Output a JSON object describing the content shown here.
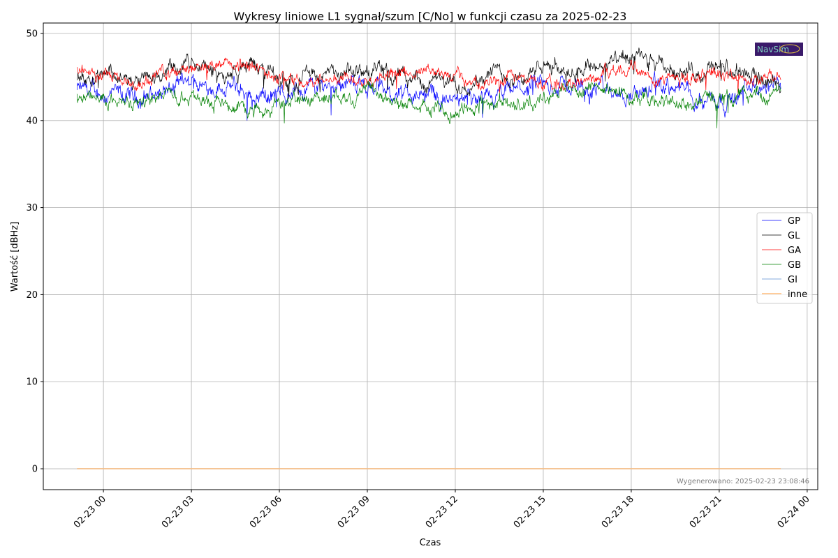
{
  "chart_data": {
    "type": "line",
    "title": "Wykresy liniowe L1 sygnał/szum [C/No] w funkcji czasu za 2025-02-23",
    "xlabel": "Czas",
    "ylabel": "Wartość [dBHz]",
    "ylim": [
      -2.4,
      51.2
    ],
    "xlim_hours": [
      -2.05,
      24.36
    ],
    "yticks": [
      0,
      10,
      20,
      30,
      40,
      50
    ],
    "xticks": [
      {
        "h": 0,
        "label": "02-23 00"
      },
      {
        "h": 3,
        "label": "02-23 03"
      },
      {
        "h": 6,
        "label": "02-23 06"
      },
      {
        "h": 9,
        "label": "02-23 09"
      },
      {
        "h": 12,
        "label": "02-23 12"
      },
      {
        "h": 15,
        "label": "02-23 15"
      },
      {
        "h": 18,
        "label": "02-23 18"
      },
      {
        "h": 21,
        "label": "02-23 21"
      },
      {
        "h": 24,
        "label": "02-24 00"
      }
    ],
    "grid": true,
    "legend_position": "center-right",
    "x_start_hour": -0.9,
    "x_step_hours": 1,
    "series": [
      {
        "name": "GP",
        "color": "#0000ff",
        "noise": 1.0,
        "values": [
          43.5,
          43,
          42.5,
          43.5,
          44,
          44,
          43,
          43,
          44,
          44.5,
          44,
          43,
          43,
          42,
          42,
          43.5,
          44,
          44,
          43.5,
          43,
          44,
          43,
          42.5,
          43.5,
          44
        ]
      },
      {
        "name": "GL",
        "color": "#000000",
        "noise": 0.9,
        "values": [
          45,
          46,
          44,
          45.5,
          46.5,
          45,
          46.5,
          44.5,
          45.5,
          45,
          46,
          45,
          44.5,
          44,
          45.5,
          45,
          46,
          46,
          46.5,
          47,
          46,
          45.5,
          46,
          45,
          44
        ]
      },
      {
        "name": "GA",
        "color": "#ff0000",
        "noise": 0.7,
        "values": [
          46,
          45,
          44,
          45.5,
          46,
          46.5,
          46,
          45,
          44.5,
          45,
          45,
          45.5,
          45.5,
          45,
          44,
          45,
          44,
          44.5,
          45.5,
          46,
          45,
          45,
          45.5,
          44.5,
          45
        ]
      },
      {
        "name": "GB",
        "color": "#008000",
        "noise": 0.8,
        "values": [
          42.5,
          42.5,
          42,
          43,
          43,
          42,
          41.5,
          42,
          42.5,
          43,
          43,
          42,
          41.5,
          41,
          42,
          42,
          42.5,
          44,
          43.5,
          43,
          42,
          42,
          42.5,
          43,
          43
        ]
      },
      {
        "name": "GI",
        "color": "#aec7e8",
        "noise": 0,
        "values": [
          0,
          0,
          0,
          0,
          0,
          0,
          0,
          0,
          0,
          0,
          0,
          0,
          0,
          0,
          0,
          0,
          0,
          0,
          0,
          0,
          0,
          0,
          0,
          0,
          0
        ]
      },
      {
        "name": "inne",
        "color": "#ffbb78",
        "noise": 0,
        "values": [
          0,
          0,
          0,
          0,
          0,
          0,
          0,
          0,
          0,
          0,
          0,
          0,
          0,
          0,
          0,
          0,
          0,
          0,
          0,
          0,
          0,
          0,
          0,
          0,
          0
        ]
      }
    ],
    "annotation": "Wygenerowano: 2025-02-23 23:08:46",
    "logo_text": "NavSim"
  }
}
